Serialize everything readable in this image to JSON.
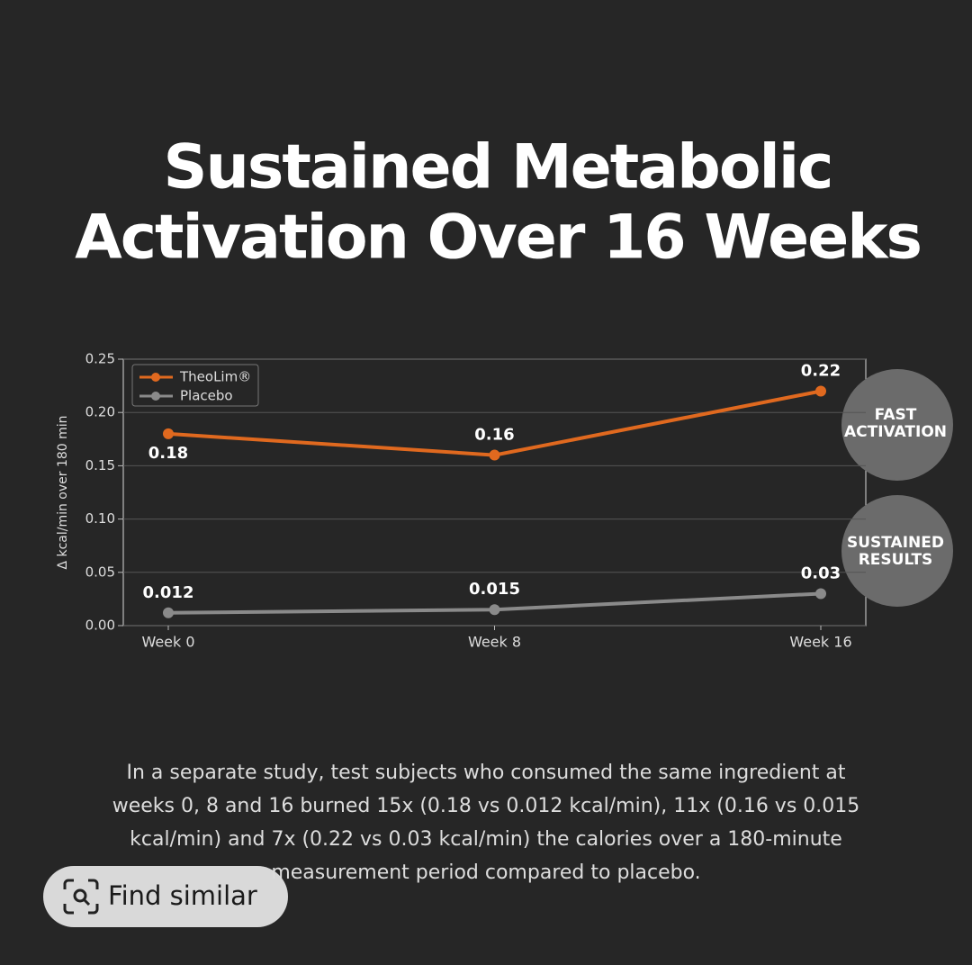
{
  "heading": {
    "lines": [
      "Sustained Metabolic",
      "Activation Over 16 Weeks"
    ]
  },
  "chart_data": {
    "type": "line",
    "y_label": "Δ kcal/min over 180 min",
    "categories": [
      "Week 0",
      "Week 8",
      "Week 16"
    ],
    "series": [
      {
        "name": "TheoLim®",
        "color": "#e0691f",
        "values": [
          0.18,
          0.16,
          0.22
        ]
      },
      {
        "name": "Placebo",
        "color": "#8a8a8a",
        "values": [
          0.012,
          0.015,
          0.03
        ]
      }
    ],
    "ylim": [
      0,
      0.25
    ],
    "yticks": [
      {
        "value": 0,
        "label": "0.00"
      },
      0.05,
      {
        "value": 0.1,
        "label": "0.10"
      },
      0.15,
      {
        "value": 0.2,
        "label": "0.20"
      },
      0.25
    ],
    "grid": true,
    "legend": "upper left"
  },
  "badges": [
    {
      "lines": [
        "FAST",
        "ACTIVATION"
      ]
    },
    {
      "lines": [
        "SUSTAINED",
        "RESULTS"
      ]
    }
  ],
  "paragraph": {
    "lines": [
      "In a separate study, test subjects who consumed the same ingredient at",
      "weeks 0, 8 and 16 burned 15x (0.18 vs 0.012 kcal/min), 11x (0.16 vs 0.015",
      "kcal/min) and 7x (0.22 vs 0.03 kcal/min) the calories over a 180-minute",
      "measurement period compared to placebo."
    ]
  },
  "button": {
    "label": "Find similar"
  }
}
